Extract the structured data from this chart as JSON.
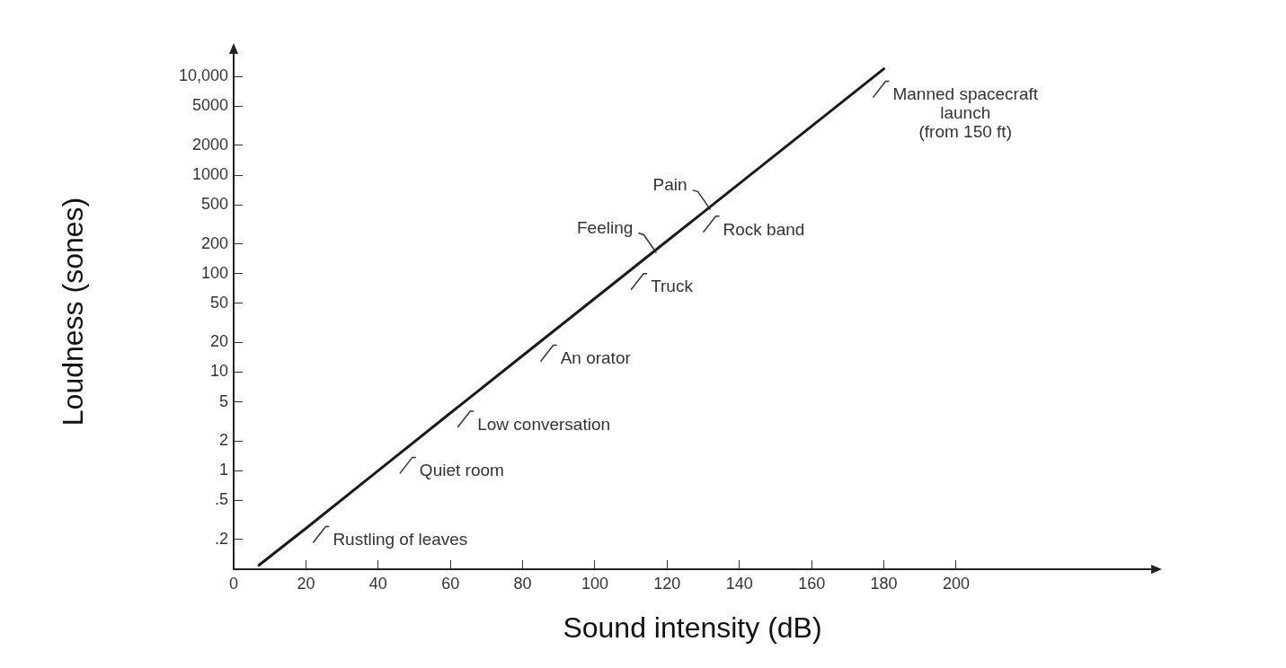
{
  "chart_data": {
    "type": "line",
    "xlabel": "Sound intensity (dB)",
    "ylabel": "Loudness (sones)",
    "log": "y",
    "grid": false,
    "legend": false,
    "marker": "none",
    "line_style": "solid",
    "xlim": [
      0,
      254
    ],
    "xticks": [
      0,
      20,
      40,
      60,
      80,
      100,
      120,
      140,
      160,
      180,
      200
    ],
    "ylim": [
      0.1,
      17000
    ],
    "yticks": [
      {
        "value": 0.2,
        "label": ".2"
      },
      {
        "value": 0.5,
        "label": ".5"
      },
      1,
      2,
      5,
      10,
      20,
      50,
      100,
      200,
      500,
      1000,
      2000,
      5000,
      {
        "value": 10000,
        "label": "10,000"
      }
    ],
    "series": [
      {
        "color": "#1a1a1a",
        "x": [
          7,
          20,
          44,
          60,
          83,
          108,
          119,
          128,
          134,
          175,
          180
        ],
        "values": [
          0.11,
          0.26,
          1.31,
          3.85,
          18,
          96,
          201,
          367,
          549,
          8580,
          12000
        ]
      }
    ],
    "annotations": [
      {
        "text": "Rustling of leaves",
        "x": 20,
        "y": 0.26
      },
      {
        "text": "Quiet room",
        "x": 44,
        "y": 1.31
      },
      {
        "text": "Low conversation",
        "x": 60,
        "y": 3.85
      },
      {
        "text": "An orator",
        "x": 83,
        "y": 18
      },
      {
        "text": "Truck",
        "x": 108,
        "y": 96
      },
      {
        "text": "Rock band",
        "x": 128,
        "y": 367
      },
      {
        "text": "Feeling",
        "x": 119,
        "y": 201
      },
      {
        "text": "Pain",
        "x": 134,
        "y": 549
      },
      {
        "text": "Manned spacecraft\nlaunch\n(from 150 ft)",
        "x": 175,
        "y": 8580
      }
    ]
  }
}
